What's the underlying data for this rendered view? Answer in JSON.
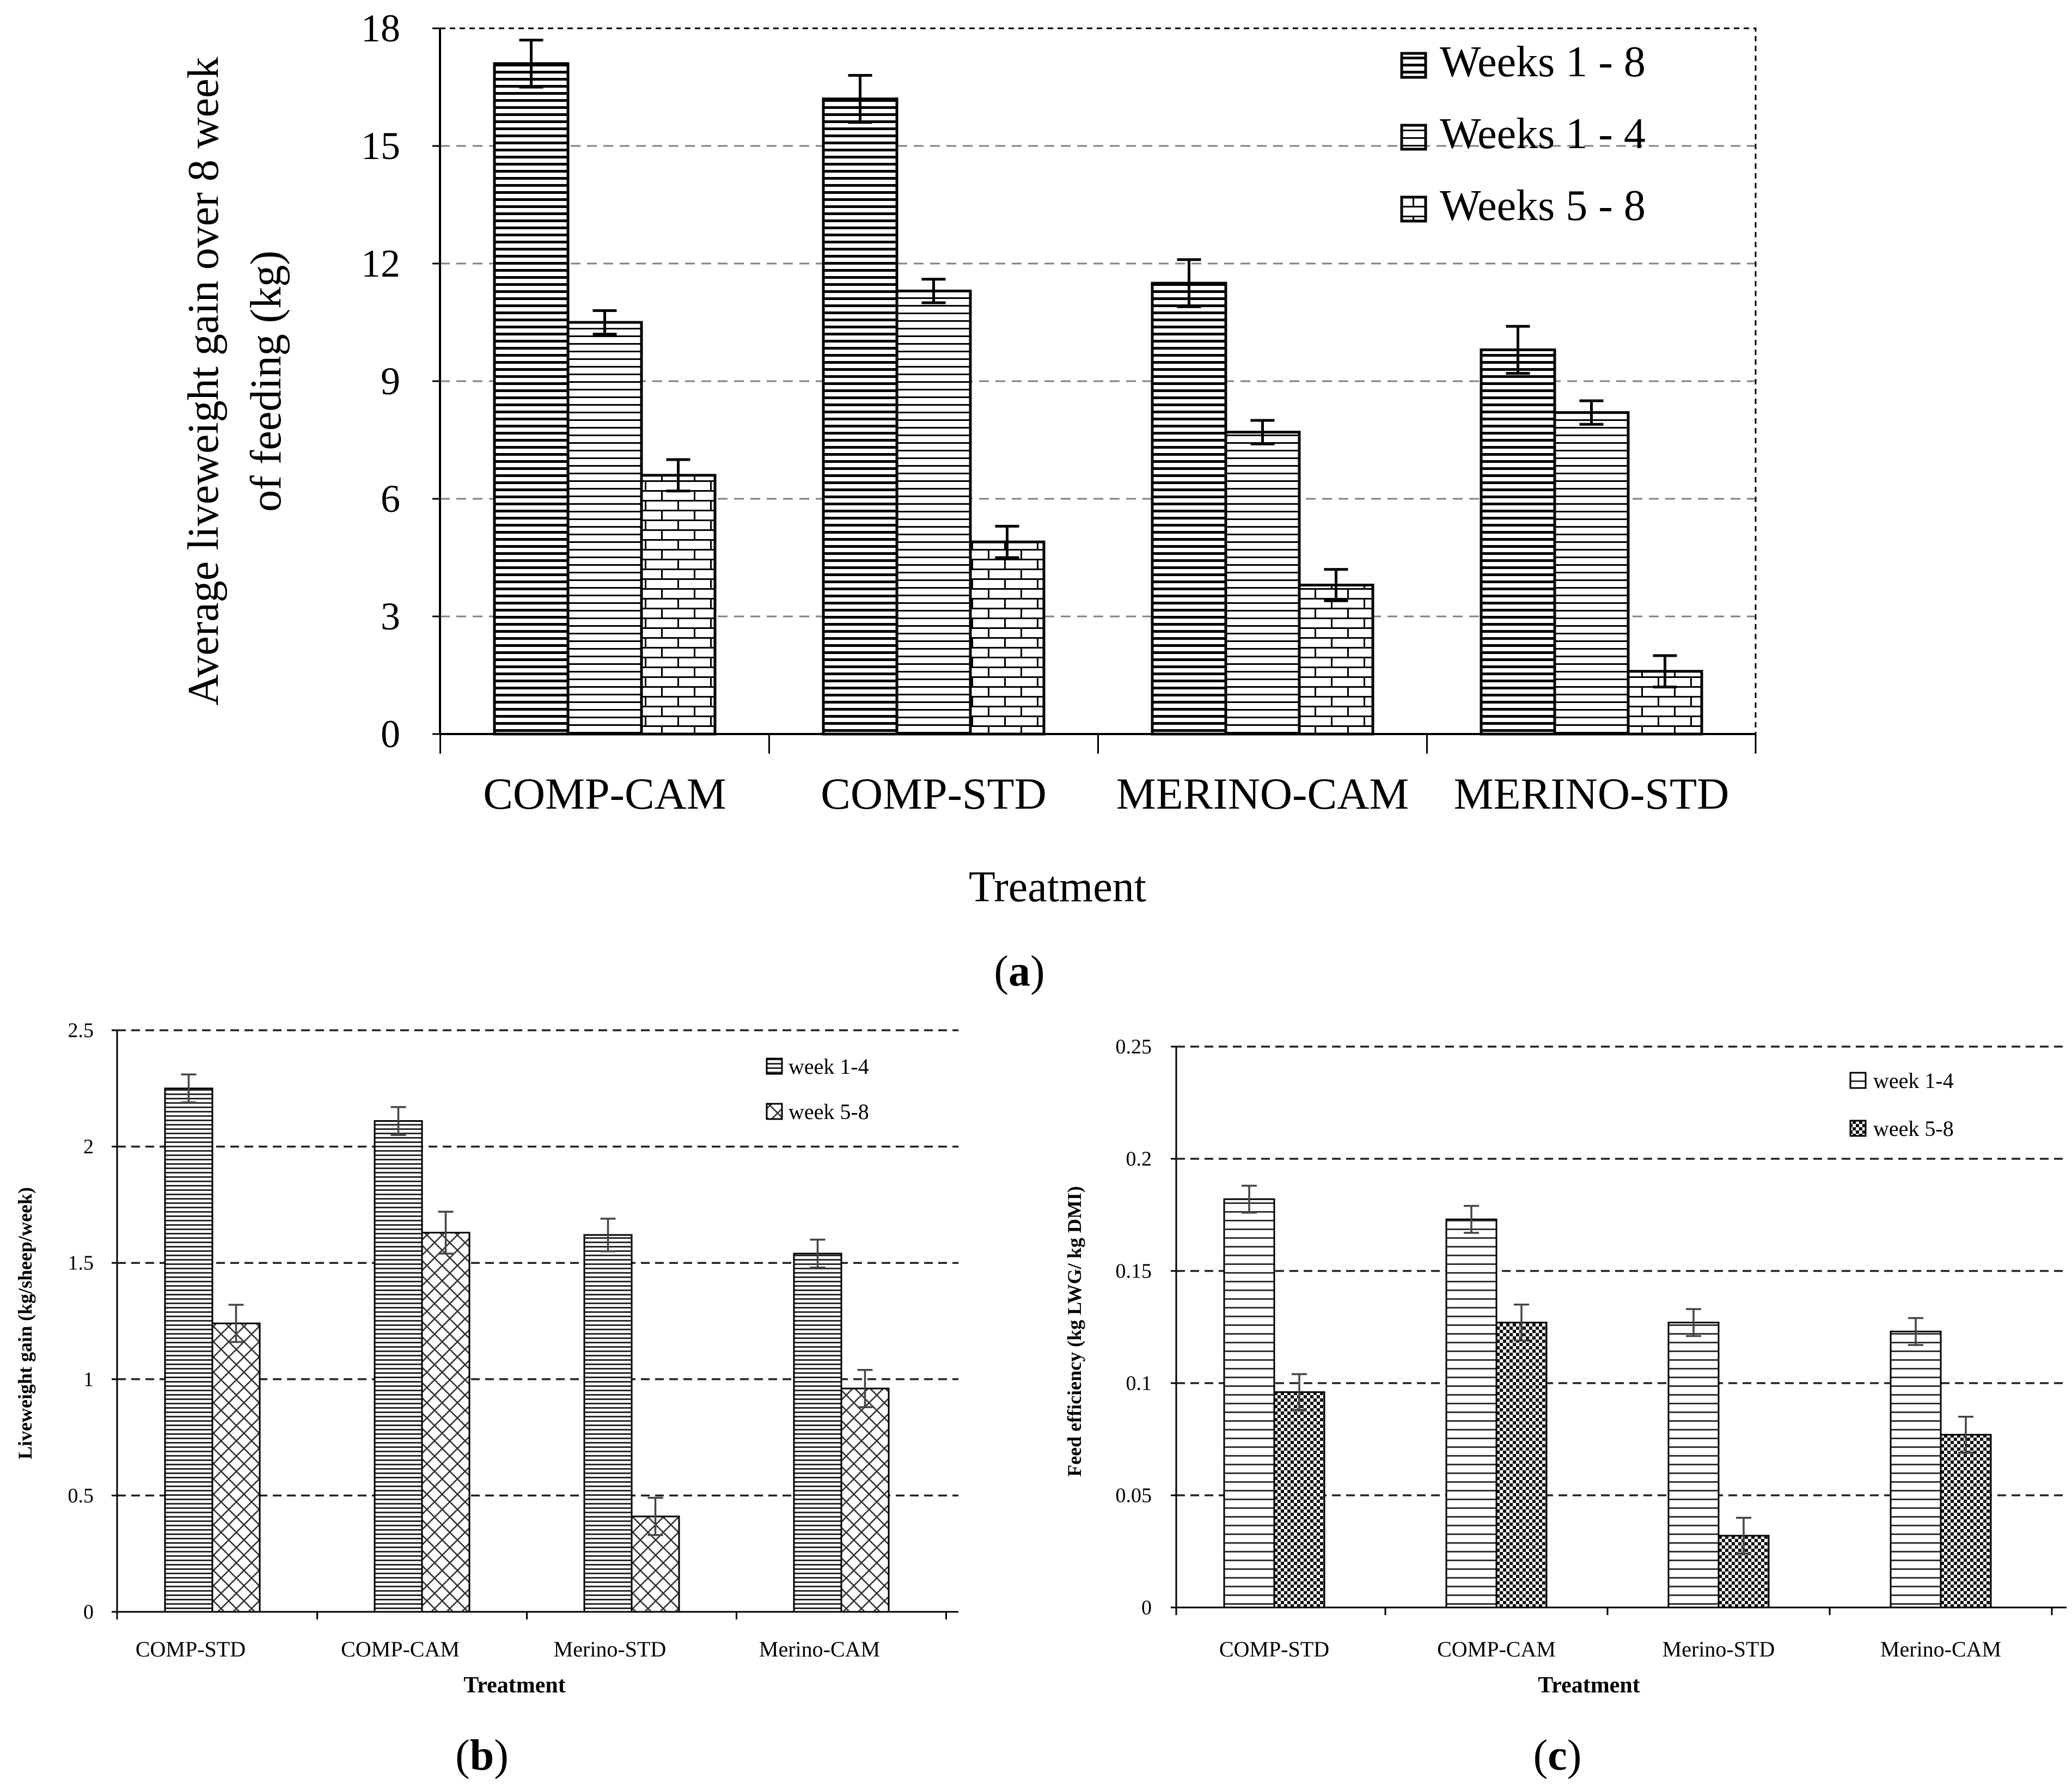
{
  "chart_data": [
    {
      "type": "bar",
      "panel_label": "(a)",
      "panel_letter": "a",
      "title": "",
      "ylabel_line1": "Average liveweight gain over 8 week",
      "ylabel_line2": "of feeding (kg)",
      "xlabel": "Treatment",
      "ylim": [
        0,
        18
      ],
      "yticks": [
        0,
        3,
        6,
        9,
        12,
        15,
        18
      ],
      "ytick_labels": [
        "0",
        "3",
        "6",
        "9",
        "12",
        "15",
        "18"
      ],
      "grid": true,
      "legend_position": "top-right",
      "categories": [
        "COMP-CAM",
        "COMP-STD",
        "MERINO-CAM",
        "MERINO-STD"
      ],
      "series": [
        {
          "name": "Weeks 1 - 8",
          "pattern": "heavy-horizontal",
          "values": [
            17.1,
            16.2,
            11.5,
            9.8
          ],
          "errors": [
            0.6,
            0.6,
            0.6,
            0.6
          ]
        },
        {
          "name": "Weeks 1 - 4",
          "pattern": "horizontal",
          "values": [
            10.5,
            11.3,
            7.7,
            8.2
          ],
          "errors": [
            0.3,
            0.3,
            0.3,
            0.3
          ]
        },
        {
          "name": "Weeks 5 - 8",
          "pattern": "brick",
          "values": [
            6.6,
            4.9,
            3.8,
            1.6
          ],
          "errors": [
            0.4,
            0.4,
            0.4,
            0.4
          ]
        }
      ]
    },
    {
      "type": "bar",
      "panel_label": "(b)",
      "panel_letter": "b",
      "title": "",
      "ylabel": "Liveweight  gain (kg/sheep/week)",
      "xlabel": "Treatment",
      "ylim": [
        0,
        2.5
      ],
      "yticks": [
        0,
        0.5,
        1,
        1.5,
        2,
        2.5
      ],
      "ytick_labels": [
        "0",
        "0.5",
        "1",
        "1.5",
        "2",
        "2.5"
      ],
      "grid": true,
      "legend_position": "top-right",
      "categories": [
        "COMP-STD",
        "COMP-CAM",
        "Merino-STD",
        "Merino-CAM"
      ],
      "series": [
        {
          "name": "week 1-4",
          "pattern": "dense-horizontal",
          "values": [
            2.25,
            2.11,
            1.62,
            1.54
          ],
          "errors": [
            0.06,
            0.06,
            0.07,
            0.06
          ]
        },
        {
          "name": "week 5-8",
          "pattern": "crosshatch",
          "values": [
            1.24,
            1.63,
            0.41,
            0.96
          ],
          "errors": [
            0.08,
            0.09,
            0.08,
            0.08
          ]
        }
      ]
    },
    {
      "type": "bar",
      "panel_label": "(c)",
      "panel_letter": "c",
      "title": "",
      "ylabel": "Feed efficiency  (kg LWG/ kg DMI)",
      "xlabel": "Treatment",
      "ylim": [
        0,
        0.25
      ],
      "yticks": [
        0,
        0.05,
        0.1,
        0.15,
        0.2,
        0.25
      ],
      "ytick_labels": [
        "0",
        "0.05",
        "0.1",
        "0.15",
        "0.2",
        "0.25"
      ],
      "grid": true,
      "legend_position": "top-right",
      "categories": [
        "COMP-STD",
        "COMP-CAM",
        "Merino-STD",
        "Merino-CAM"
      ],
      "series": [
        {
          "name": "week 1-4",
          "pattern": "horizontal",
          "values": [
            0.182,
            0.173,
            0.127,
            0.123
          ],
          "errors": [
            0.006,
            0.006,
            0.006,
            0.006
          ]
        },
        {
          "name": "week 5-8",
          "pattern": "checker",
          "values": [
            0.096,
            0.127,
            0.032,
            0.077
          ],
          "errors": [
            0.008,
            0.008,
            0.008,
            0.008
          ]
        }
      ]
    }
  ]
}
